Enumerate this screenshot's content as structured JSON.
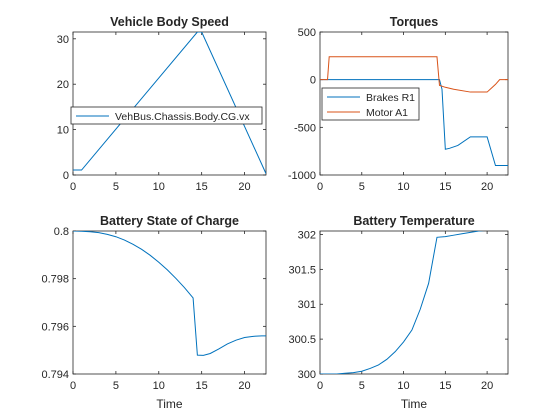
{
  "colors": {
    "series1": "#0072BD",
    "series2": "#D95319",
    "axis": "#262626"
  },
  "chart_data": [
    {
      "type": "line",
      "title": "Vehicle Body Speed",
      "xlabel": "",
      "ylabel": "",
      "xlim": [
        0,
        22.5
      ],
      "ylim": [
        0,
        31.5
      ],
      "xticks": [
        0,
        5,
        10,
        15,
        20
      ],
      "yticks": [
        0,
        10,
        20,
        30
      ],
      "legend": "middle",
      "series": [
        {
          "name": "VehBus.Chassis.Body.CG.vx",
          "color": "#0072BD",
          "x": [
            0,
            1,
            14.5,
            15.0,
            22.5
          ],
          "y": [
            1.1,
            1.1,
            31.5,
            31.5,
            0.3
          ]
        }
      ]
    },
    {
      "type": "line",
      "title": "Torques",
      "xlabel": "",
      "ylabel": "",
      "xlim": [
        0,
        22.5
      ],
      "ylim": [
        -1000,
        500
      ],
      "xticks": [
        0,
        5,
        10,
        15,
        20
      ],
      "yticks": [
        -1000,
        -500,
        0,
        500
      ],
      "legend": "middle-left",
      "series": [
        {
          "name": "Brakes R1",
          "color": "#0072BD",
          "x": [
            0,
            14.3,
            14.6,
            15.0,
            15.5,
            16.5,
            18.0,
            20.0,
            21.0,
            22.5
          ],
          "y": [
            0,
            0,
            -100,
            -730,
            -720,
            -690,
            -600,
            -600,
            -900,
            -900
          ]
        },
        {
          "name": "Motor A1",
          "color": "#D95319",
          "x": [
            0,
            0.9,
            1.1,
            14.0,
            14.3,
            15.0,
            16.0,
            18.0,
            19.0,
            20.0,
            20.5,
            21.0,
            21.5,
            22.5
          ],
          "y": [
            0,
            0,
            240,
            240,
            -60,
            -80,
            -100,
            -130,
            -130,
            -130,
            -90,
            -50,
            0,
            0
          ]
        }
      ]
    },
    {
      "type": "line",
      "title": "Battery State of Charge",
      "xlabel": "Time",
      "ylabel": "",
      "xlim": [
        0,
        22.5
      ],
      "ylim": [
        0.794,
        0.8
      ],
      "xticks": [
        0,
        5,
        10,
        15,
        20
      ],
      "yticks": [
        0.794,
        0.796,
        0.798,
        0.8
      ],
      "series": [
        {
          "name": "",
          "color": "#0072BD",
          "x": [
            0,
            1,
            2,
            3,
            4,
            5,
            6,
            7,
            8,
            9,
            10,
            11,
            12,
            13,
            14,
            14.5,
            15.2,
            16,
            17,
            18,
            19,
            20,
            21,
            22,
            22.5
          ],
          "y": [
            0.8,
            0.79999,
            0.79997,
            0.79993,
            0.79986,
            0.79976,
            0.79962,
            0.79944,
            0.79923,
            0.79898,
            0.79869,
            0.79837,
            0.79801,
            0.79762,
            0.79719,
            0.79479,
            0.79478,
            0.79486,
            0.79505,
            0.79526,
            0.79542,
            0.79553,
            0.79558,
            0.7956,
            0.7956
          ]
        }
      ]
    },
    {
      "type": "line",
      "title": "Battery Temperature",
      "xlabel": "Time",
      "ylabel": "",
      "xlim": [
        0,
        22.5
      ],
      "ylim": [
        300,
        302.05
      ],
      "xticks": [
        0,
        5,
        10,
        15,
        20
      ],
      "yticks": [
        300,
        300.5,
        301,
        301.5,
        302
      ],
      "series": [
        {
          "name": "",
          "color": "#0072BD",
          "x": [
            0,
            1,
            2,
            3,
            4,
            5,
            6,
            7,
            8,
            9,
            10,
            11,
            12,
            13,
            14,
            15,
            16,
            17,
            18,
            19,
            20,
            21,
            22,
            22.5
          ],
          "y": [
            300.0,
            300.0,
            300.0,
            300.01,
            300.02,
            300.04,
            300.08,
            300.13,
            300.21,
            300.32,
            300.46,
            300.63,
            300.93,
            301.3,
            301.96,
            301.97,
            301.99,
            302.01,
            302.03,
            302.05,
            302.06,
            302.06,
            302.06,
            302.06
          ]
        }
      ]
    }
  ]
}
